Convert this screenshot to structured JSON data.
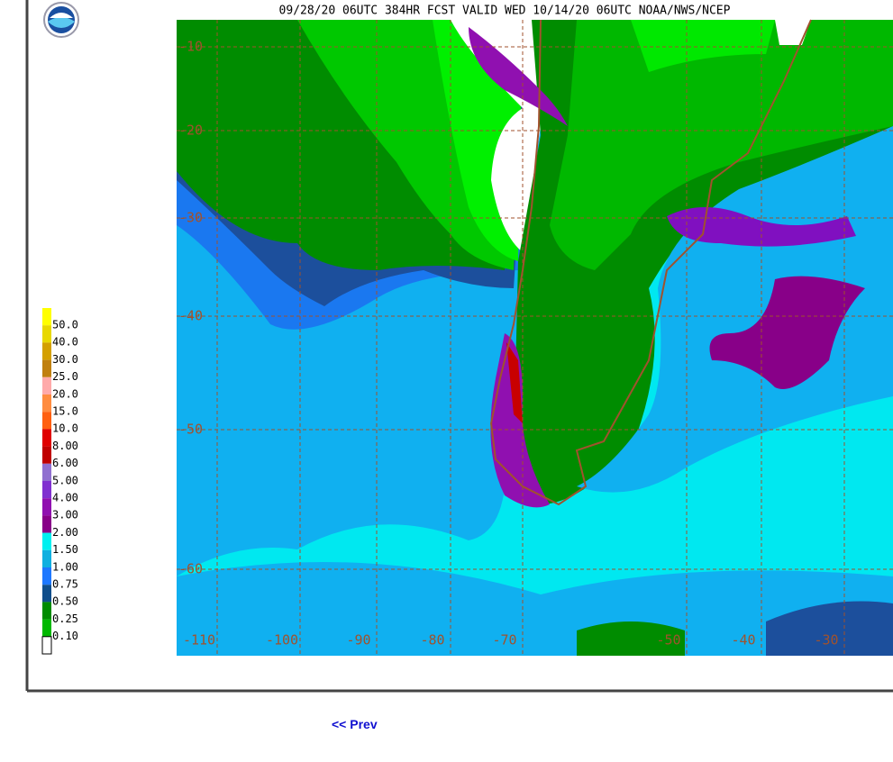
{
  "title": "09/28/20 06UTC 384HR FCST VALID WED 10/14/20 06UTC NOAA/NWS/NCEP",
  "legend": {
    "labels": [
      "50.0",
      "40.0",
      "30.0",
      "25.0",
      "20.0",
      "15.0",
      "10.0",
      "8.00",
      "6.00",
      "5.00",
      "4.00",
      "3.00",
      "2.00",
      "1.50",
      "1.00",
      "0.75",
      "0.50",
      "0.25",
      "0.10"
    ]
  },
  "map": {
    "lat_labels": [
      "-10",
      "-20",
      "-30",
      "-40",
      "-50",
      "-60"
    ],
    "lon_labels": [
      "-110",
      "-100",
      "-90",
      "-80",
      "-70",
      "-50",
      "-40",
      "-30"
    ]
  },
  "nav": {
    "prev": "<< Prev"
  }
}
